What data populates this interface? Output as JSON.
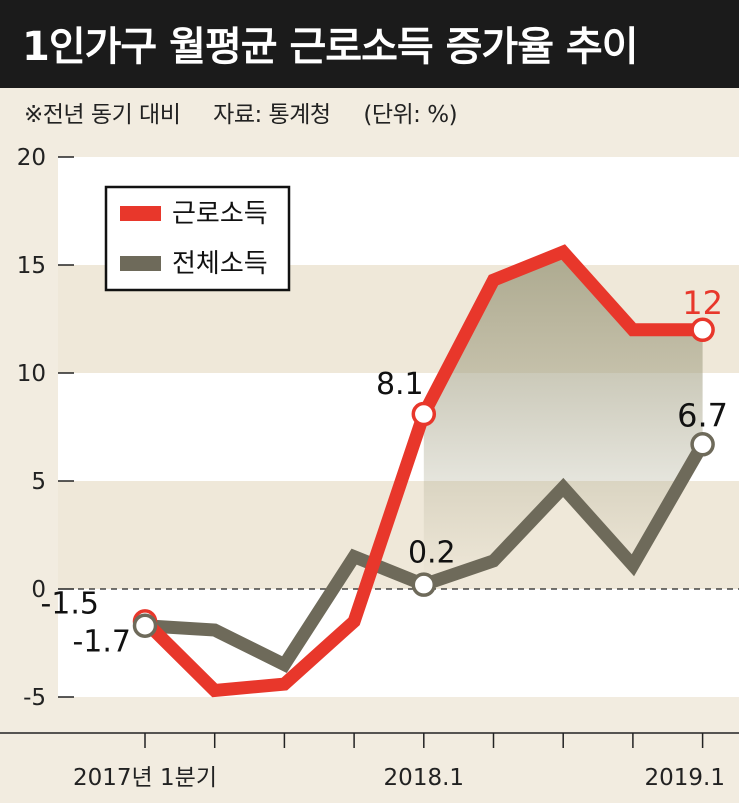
{
  "title": "1인가구 월평균 근로소득 증가율 추이",
  "notes": {
    "basis": "※전년 동기 대비",
    "source": "자료: 통계청",
    "unit": "(단위: %)"
  },
  "colors": {
    "earned": "#e8372b",
    "total": "#6e6a5a",
    "fill": "#a9a68b",
    "band": "#efe8d9",
    "background": "#f2ece0"
  },
  "chart_data": {
    "type": "line",
    "x": [
      "2017.1",
      "2017.2",
      "2017.3",
      "2017.4",
      "2018.1",
      "2018.2",
      "2018.3",
      "2018.4",
      "2019.1"
    ],
    "x_tick_labels": [
      {
        "index": 0,
        "label": "2017년 1분기"
      },
      {
        "index": 4,
        "label": "2018.1"
      },
      {
        "index": 8,
        "label": "2019.1"
      }
    ],
    "y_ticks": [
      "20",
      "15",
      "10",
      "5",
      "0",
      "-5"
    ],
    "ylim": [
      -6.5,
      20
    ],
    "series": [
      {
        "name": "근로소득",
        "values": [
          -1.5,
          -4.7,
          -4.4,
          -1.5,
          8.1,
          14.3,
          15.6,
          12.0,
          12.0
        ]
      },
      {
        "name": "전체소득",
        "values": [
          -1.7,
          -1.9,
          -3.5,
          1.5,
          0.2,
          1.3,
          4.7,
          1.1,
          6.7
        ]
      }
    ],
    "data_labels": [
      {
        "series": 0,
        "index": 0,
        "text": "-1.5"
      },
      {
        "series": 1,
        "index": 0,
        "text": "-1.7"
      },
      {
        "series": 0,
        "index": 4,
        "text": "8.1"
      },
      {
        "series": 1,
        "index": 4,
        "text": "0.2"
      },
      {
        "series": 0,
        "index": 8,
        "text": "12"
      },
      {
        "series": 1,
        "index": 8,
        "text": "6.7"
      }
    ],
    "legend": {
      "placement": "top-left",
      "entries": [
        "근로소득",
        "전체소득"
      ]
    }
  }
}
